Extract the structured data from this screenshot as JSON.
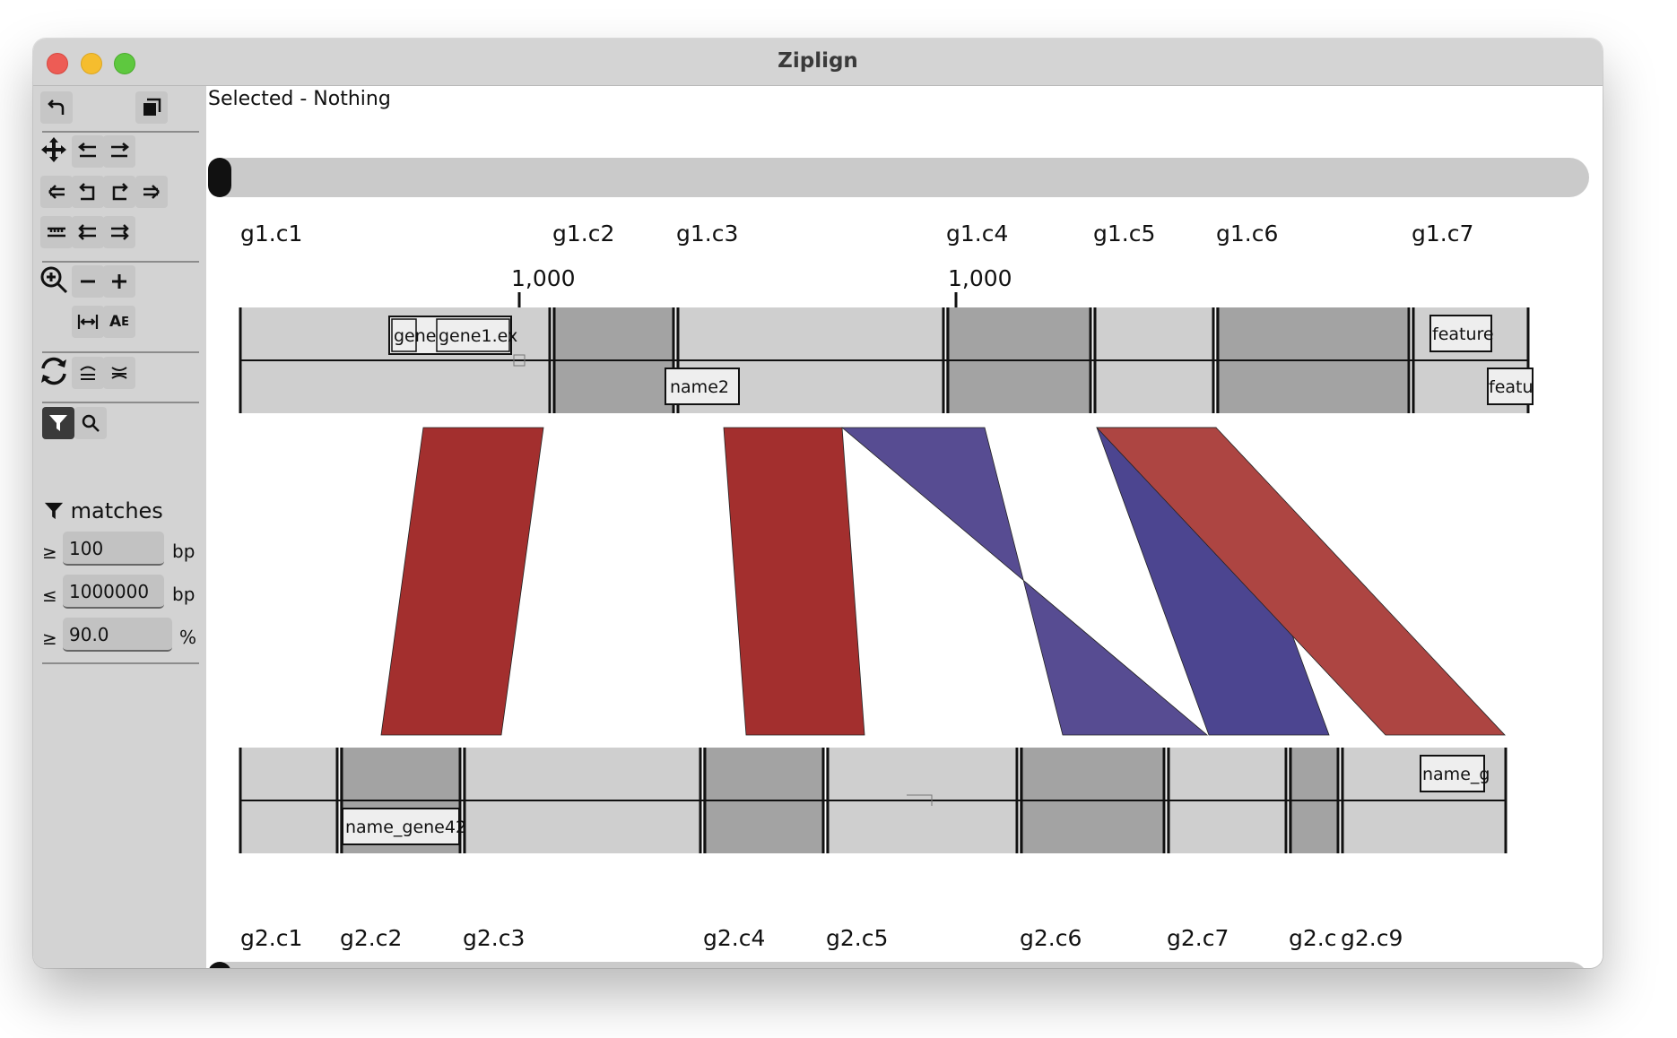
{
  "window": {
    "title": "Ziplign"
  },
  "toolbar": {
    "icons": [
      "undo-icon",
      "copy-icon",
      "move-icon",
      "shift-left-icon",
      "shift-right-icon",
      "arrow-left-icon",
      "rotate-left-icon",
      "rotate-right-icon",
      "arrow-right-icon",
      "ruler-icon",
      "align-left-icon",
      "align-right-icon",
      "zoom-in-icon",
      "zoom-minus-icon",
      "zoom-plus-icon",
      "fit-width-icon",
      "text-size-icon",
      "refresh-icon",
      "collapse-icon",
      "expand-icon",
      "filter-icon",
      "search-icon"
    ]
  },
  "filter": {
    "title": "matches",
    "min_length": {
      "symbol": "≥",
      "value": "100",
      "unit": "bp"
    },
    "max_length": {
      "symbol": "≤",
      "value": "1000000",
      "unit": "bp"
    },
    "min_identity": {
      "symbol": "≥",
      "value": "90.0",
      "unit": "%"
    }
  },
  "selection": {
    "text": "Selected - Nothing"
  },
  "genome1": {
    "contigs": [
      "g1.c1",
      "g1.c2",
      "g1.c3",
      "g1.c4",
      "g1.c5",
      "g1.c6",
      "g1.c7"
    ],
    "ticks": [
      "1,000",
      "1,000"
    ],
    "features": [
      "gene",
      "gene1.ex",
      "feature",
      "name2",
      "featu"
    ]
  },
  "genome2": {
    "contigs": [
      "g2.c1",
      "g2.c2",
      "g2.c3",
      "g2.c4",
      "g2.c5",
      "g2.c6",
      "g2.c7",
      "g2.c",
      "g2.c9"
    ],
    "features": [
      "name_g",
      "name_gene42"
    ]
  },
  "colors": {
    "match_forward": "#a32f2e",
    "match_reverse": "#574c92",
    "contig_light": "#cfcfcf",
    "contig_dark": "#a3a3a3"
  }
}
